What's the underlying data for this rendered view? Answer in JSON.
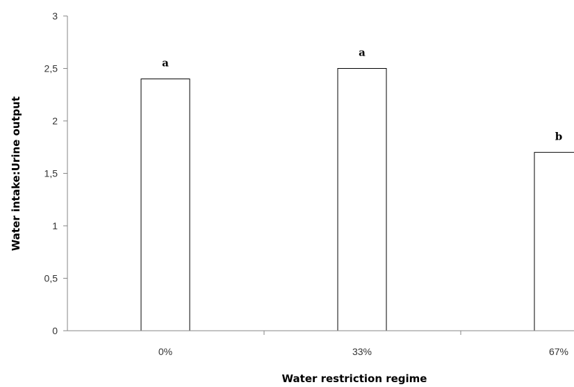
{
  "chart_data": {
    "type": "bar",
    "categories": [
      "0%",
      "33%",
      "67%"
    ],
    "values": [
      2.4,
      2.5,
      1.7
    ],
    "significance_labels": [
      "a",
      "a",
      "b"
    ],
    "xlabel": "Water restriction regime",
    "ylabel": "Water intake:Urine output",
    "ylim": [
      0,
      3
    ],
    "yticks": [
      "0",
      "0,5",
      "1",
      "1,5",
      "2",
      "2,5",
      "3"
    ],
    "grid": false,
    "bar_fill": "#ffffff",
    "bar_stroke": "#000000",
    "axis_color": "#868686"
  }
}
